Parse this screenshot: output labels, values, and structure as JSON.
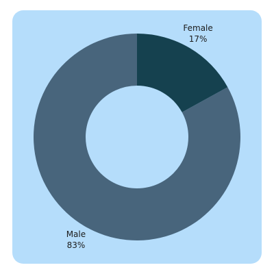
{
  "chart_data": {
    "type": "donut",
    "categories": [
      "Female",
      "Male"
    ],
    "values": [
      17,
      83
    ],
    "value_labels": [
      "17%",
      "83%"
    ],
    "colors": [
      "#15414f",
      "#48657c"
    ]
  }
}
